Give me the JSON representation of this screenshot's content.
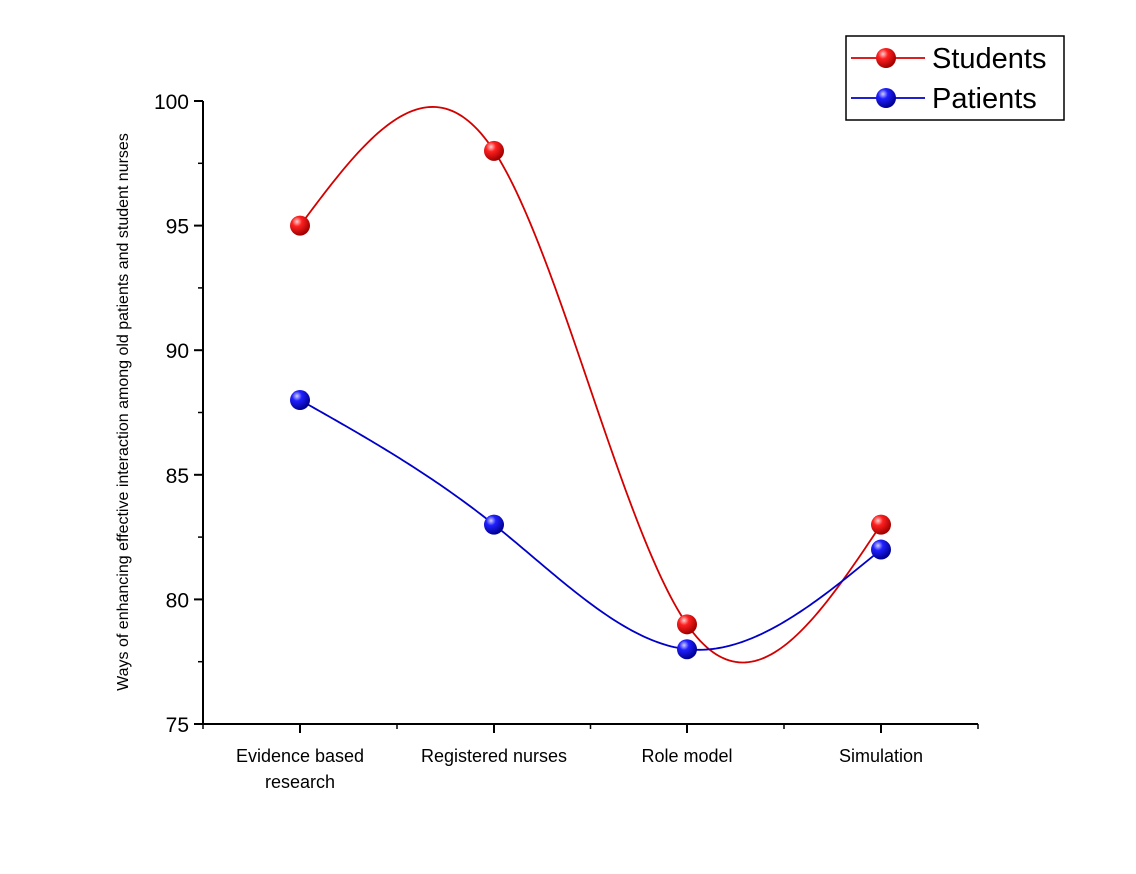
{
  "chart_data": {
    "type": "line",
    "title": "",
    "xlabel": "",
    "ylabel": "Ways of enhancing effective  interaction among old patients and student nurses",
    "categories": [
      "Evidence based research",
      "Registered nurses",
      "Role model",
      "Simulation"
    ],
    "category_lines": [
      [
        "Evidence based",
        "research"
      ],
      [
        "Registered nurses"
      ],
      [
        "Role model"
      ],
      [
        "Simulation"
      ]
    ],
    "ylim": [
      75,
      100
    ],
    "yticks": [
      75,
      80,
      85,
      90,
      95,
      100
    ],
    "ytick_labels": [
      "75",
      "80",
      "85",
      "90",
      "95",
      "100"
    ],
    "grid": false,
    "smooth": true,
    "legend_position": "top-right",
    "series": [
      {
        "name": "Students",
        "values": [
          95,
          98,
          79,
          83
        ],
        "color": "#d40000",
        "marker_color": "#ff0000"
      },
      {
        "name": "Patients",
        "values": [
          88,
          83,
          78,
          82
        ],
        "color": "#0000c8",
        "marker_color": "#0000ff"
      }
    ]
  }
}
